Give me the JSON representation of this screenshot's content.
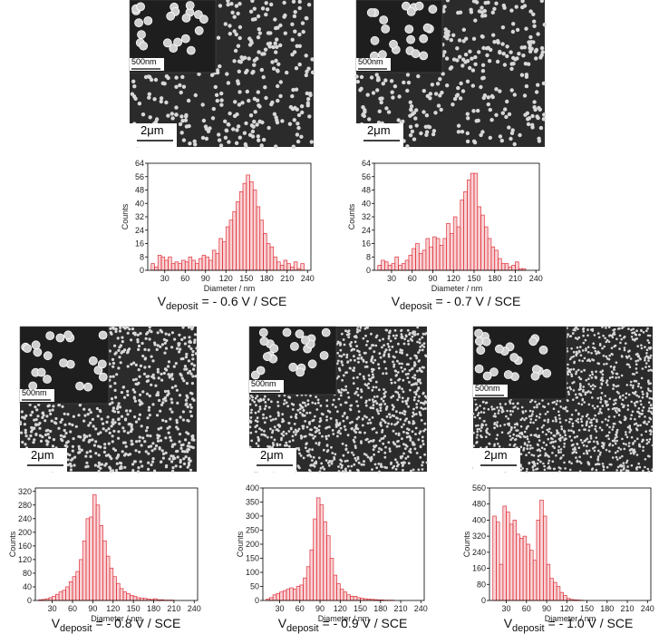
{
  "chart_data": [
    {
      "type": "histogram",
      "xlabel": "Diameter / nm",
      "ylabel": "Counts",
      "color": "#e0303a",
      "caption_v": "V",
      "caption_sub": "deposit",
      "caption_rest": "= - 0.6 V / SCE",
      "scale_bar": "2μm",
      "inset_scale_bar": "500nm",
      "bins": [
        10,
        15,
        20,
        25,
        30,
        35,
        40,
        45,
        50,
        55,
        60,
        65,
        70,
        75,
        80,
        85,
        90,
        95,
        100,
        105,
        110,
        115,
        120,
        125,
        130,
        135,
        140,
        145,
        150,
        155,
        160,
        165,
        170,
        175,
        180,
        185,
        190,
        195,
        200,
        205,
        210,
        215,
        220,
        225,
        230,
        235,
        240
      ],
      "values": [
        4,
        2,
        9,
        8,
        6,
        8,
        4,
        5,
        4,
        6,
        5,
        8,
        6,
        4,
        7,
        9,
        8,
        6,
        12,
        10,
        19,
        17,
        26,
        30,
        35,
        41,
        47,
        52,
        57,
        53,
        48,
        38,
        30,
        22,
        16,
        14,
        8,
        5,
        3,
        6,
        4,
        2,
        5,
        1,
        4,
        0
      ],
      "xlim": [
        5,
        245
      ],
      "xticks": [
        30,
        60,
        90,
        120,
        150,
        180,
        210,
        240
      ],
      "ylim": [
        0,
        64
      ],
      "yticks": [
        0,
        8,
        16,
        24,
        32,
        40,
        48,
        56,
        64
      ]
    },
    {
      "type": "histogram",
      "xlabel": "Diameter / nm",
      "ylabel": "Counts",
      "color": "#e0303a",
      "caption_v": "V",
      "caption_sub": "deposit",
      "caption_rest": "= - 0.7 V / SCE",
      "scale_bar": "2μm",
      "inset_scale_bar": "500nm",
      "bins": [
        10,
        15,
        20,
        25,
        30,
        35,
        40,
        45,
        50,
        55,
        60,
        65,
        70,
        75,
        80,
        85,
        90,
        95,
        100,
        105,
        110,
        115,
        120,
        125,
        130,
        135,
        140,
        145,
        150,
        155,
        160,
        165,
        170,
        175,
        180,
        185,
        190,
        195,
        200,
        205,
        210,
        215,
        220,
        225,
        230,
        235,
        240
      ],
      "values": [
        3,
        6,
        5,
        3,
        4,
        8,
        3,
        4,
        6,
        9,
        13,
        16,
        10,
        12,
        19,
        14,
        20,
        19,
        15,
        19,
        28,
        22,
        32,
        26,
        42,
        47,
        54,
        58,
        58,
        38,
        33,
        26,
        19,
        14,
        12,
        7,
        4,
        4,
        2,
        3,
        5,
        1,
        1,
        0,
        0,
        0
      ],
      "xlim": [
        5,
        245
      ],
      "xticks": [
        30,
        60,
        90,
        120,
        150,
        180,
        210,
        240
      ],
      "ylim": [
        0,
        64
      ],
      "yticks": [
        0,
        8,
        16,
        24,
        32,
        40,
        48,
        56,
        64
      ]
    },
    {
      "type": "histogram",
      "xlabel": "Diameter / nm",
      "ylabel": "Counts",
      "color": "#e0303a",
      "caption_v": "V",
      "caption_sub": "deposit",
      "caption_rest": "= - 0.8 V / SCE",
      "scale_bar": "2μm",
      "inset_scale_bar": "500nm",
      "bins": [
        10,
        15,
        20,
        25,
        30,
        35,
        40,
        45,
        50,
        55,
        60,
        65,
        70,
        75,
        80,
        85,
        90,
        95,
        100,
        105,
        110,
        115,
        120,
        125,
        130,
        135,
        140,
        145,
        150,
        155,
        160,
        165,
        170,
        175,
        180,
        185,
        190,
        195,
        200,
        205,
        210,
        215,
        220,
        225,
        230,
        235,
        240
      ],
      "values": [
        2,
        3,
        5,
        8,
        12,
        18,
        25,
        30,
        40,
        55,
        70,
        85,
        120,
        175,
        240,
        245,
        310,
        280,
        220,
        175,
        130,
        95,
        70,
        50,
        35,
        25,
        20,
        15,
        12,
        8,
        7,
        6,
        4,
        3,
        5,
        2,
        2,
        1,
        1,
        1,
        0,
        0,
        0,
        0,
        0,
        0
      ],
      "xlim": [
        5,
        245
      ],
      "xticks": [
        30,
        60,
        90,
        120,
        150,
        180,
        210,
        240
      ],
      "ylim": [
        0,
        330
      ],
      "yticks": [
        0,
        40,
        80,
        120,
        160,
        200,
        240,
        280,
        320
      ]
    },
    {
      "type": "histogram",
      "xlabel": "Diameter / nm",
      "ylabel": "Counts",
      "color": "#e0303a",
      "caption_v": "V",
      "caption_sub": "deposit",
      "caption_rest": "= - 0.9 V / SCE",
      "scale_bar": "2μm",
      "inset_scale_bar": "500nm",
      "bins": [
        10,
        15,
        20,
        25,
        30,
        35,
        40,
        45,
        50,
        55,
        60,
        65,
        70,
        75,
        80,
        85,
        90,
        95,
        100,
        105,
        110,
        115,
        120,
        125,
        130,
        135,
        140,
        145,
        150,
        155,
        160,
        165,
        170,
        175,
        180,
        185,
        190,
        195,
        200,
        205,
        210,
        215,
        220,
        225,
        230,
        235,
        240
      ],
      "values": [
        5,
        10,
        20,
        25,
        30,
        35,
        40,
        45,
        40,
        50,
        55,
        80,
        120,
        180,
        290,
        365,
        340,
        280,
        230,
        150,
        90,
        60,
        40,
        30,
        20,
        15,
        15,
        10,
        8,
        6,
        5,
        4,
        3,
        2,
        2,
        1,
        1,
        1,
        0,
        0,
        0,
        0,
        0,
        0,
        0,
        0
      ],
      "xlim": [
        5,
        245
      ],
      "xticks": [
        30,
        60,
        90,
        120,
        150,
        180,
        210,
        240
      ],
      "ylim": [
        0,
        400
      ],
      "yticks": [
        0,
        50,
        100,
        150,
        200,
        250,
        300,
        350,
        400
      ]
    },
    {
      "type": "histogram",
      "xlabel": "Diameter / nm",
      "ylabel": "Counts",
      "color": "#e0303a",
      "caption_v": "V",
      "caption_sub": "deposit",
      "caption_rest": "= - 1.0 V / SCE",
      "scale_bar": "2μm",
      "inset_scale_bar": "500nm",
      "bins": [
        10,
        15,
        20,
        25,
        30,
        35,
        40,
        45,
        50,
        55,
        60,
        65,
        70,
        75,
        80,
        85,
        90,
        95,
        100,
        105,
        110,
        115,
        120,
        125,
        130,
        135,
        140,
        145,
        150,
        155,
        160,
        165,
        170,
        175,
        180,
        185,
        190,
        195,
        200,
        205,
        210,
        215,
        220,
        225,
        230,
        235,
        240
      ],
      "values": [
        420,
        390,
        180,
        470,
        440,
        380,
        400,
        330,
        310,
        320,
        280,
        250,
        200,
        400,
        500,
        420,
        180,
        110,
        90,
        70,
        40,
        25,
        10,
        5,
        3,
        2,
        1,
        0,
        0,
        0,
        0,
        0,
        0,
        0,
        0,
        0,
        0,
        0,
        0,
        0,
        0,
        0,
        0,
        0,
        0,
        0
      ],
      "xlim": [
        5,
        245
      ],
      "xticks": [
        30,
        60,
        90,
        120,
        150,
        180,
        210,
        240
      ],
      "ylim": [
        0,
        560
      ],
      "yticks": [
        0,
        80,
        160,
        240,
        320,
        400,
        480,
        560
      ]
    }
  ]
}
